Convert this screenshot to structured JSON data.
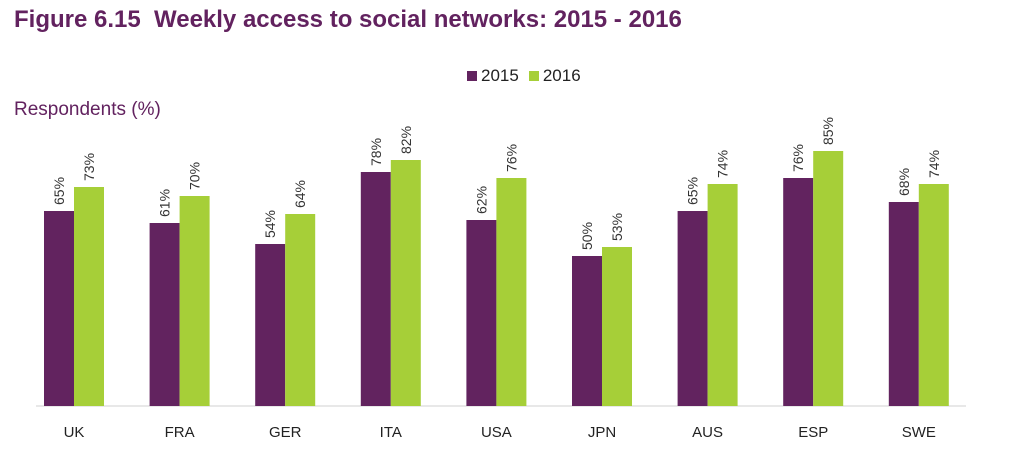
{
  "figure": {
    "number": "Figure 6.15",
    "title": "Weekly access to social networks: 2015 - 2016"
  },
  "colors": {
    "2015": "#62235f",
    "2016": "#a6cf38"
  },
  "chart_data": {
    "type": "bar",
    "title": "Weekly access to social networks: 2015 - 2016",
    "ylabel": "Respondents (%)",
    "xlabel": "",
    "ylim": [
      0,
      100
    ],
    "grid": false,
    "legend_position": "top-center",
    "categories": [
      "UK",
      "FRA",
      "GER",
      "ITA",
      "USA",
      "JPN",
      "AUS",
      "ESP",
      "SWE"
    ],
    "series": [
      {
        "name": "2015",
        "values": [
          65,
          61,
          54,
          78,
          62,
          50,
          65,
          76,
          68
        ],
        "labels": [
          "65%",
          "61%",
          "54%",
          "78%",
          "62%",
          "50%",
          "65%",
          "76%",
          "68%"
        ]
      },
      {
        "name": "2016",
        "values": [
          73,
          70,
          64,
          82,
          76,
          53,
          74,
          85,
          74
        ],
        "labels": [
          "73%",
          "70%",
          "64%",
          "82%",
          "76%",
          "53%",
          "74%",
          "85%",
          "74%"
        ]
      }
    ]
  }
}
